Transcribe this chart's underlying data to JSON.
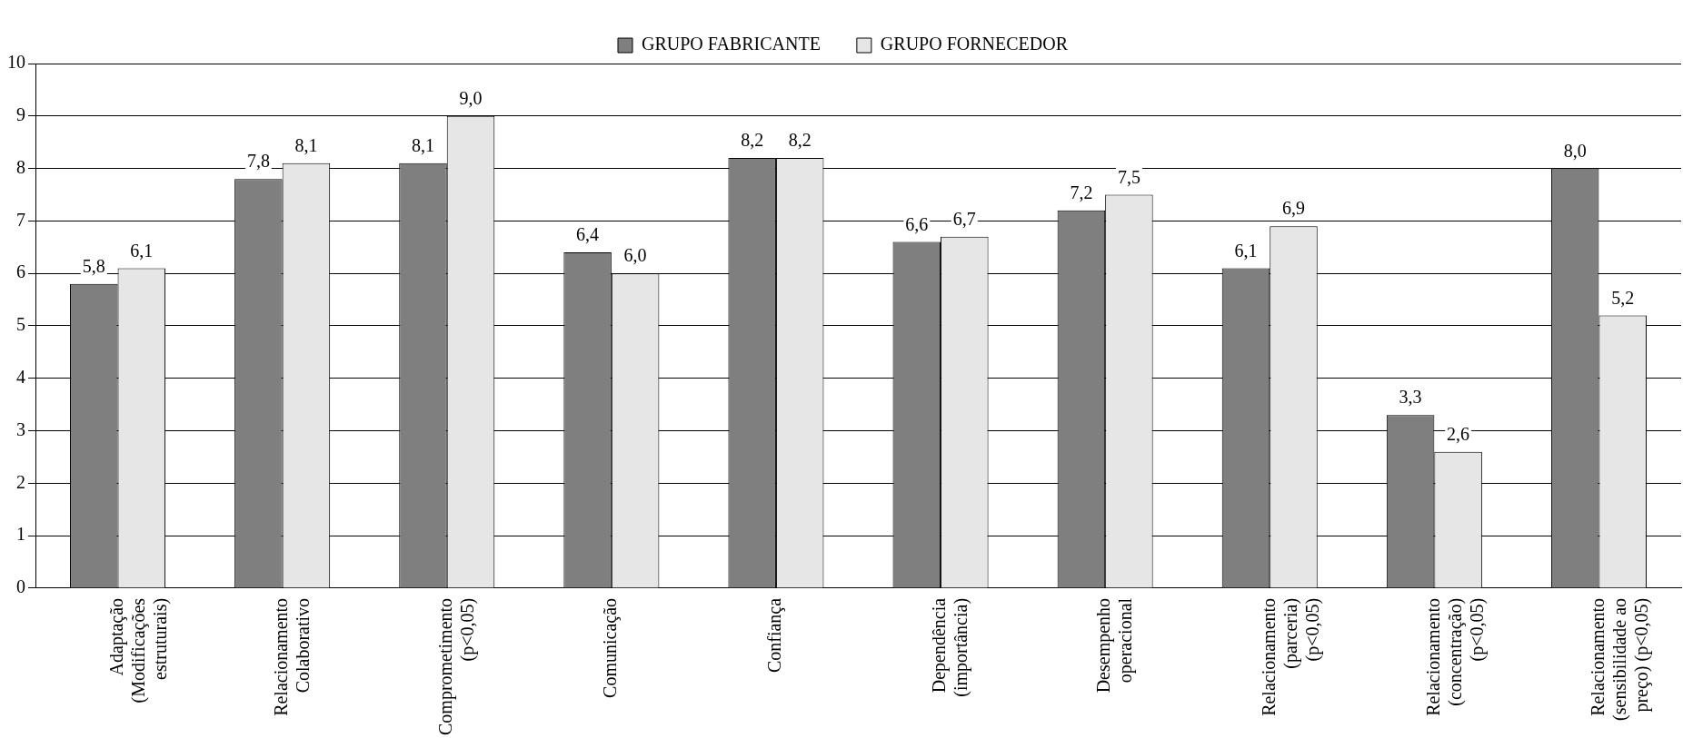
{
  "chart_data": {
    "type": "bar",
    "categories": [
      "Adaptação\n(Modificações\nestruturais)",
      "Relacionamento\nColaborativo",
      "Comprometimento\n(p<0,05)",
      "Comunicação",
      "Confiança",
      "Dependência\n(importância)",
      "Desempenho\noperacional",
      "Relacionamento\n(parceria)\n(p<0,05)",
      "Relacionamento\n(concentração)\n(p<0,05)",
      "Relacionamento\n(sensibilidade ao\npreço) (p<0,05)"
    ],
    "series": [
      {
        "name": "GRUPO FABRICANTE",
        "color": "#7f7f7f",
        "values": [
          5.8,
          7.8,
          8.1,
          6.4,
          8.2,
          6.6,
          7.2,
          6.1,
          3.3,
          8.0
        ],
        "value_labels": [
          "5,8",
          "7,8",
          "8,1",
          "6,4",
          "8,2",
          "6,6",
          "7,2",
          "6,1",
          "3,3",
          "8,0"
        ]
      },
      {
        "name": "GRUPO FORNECEDOR",
        "color": "#e6e6e6",
        "values": [
          6.1,
          8.1,
          9.0,
          6.0,
          8.2,
          6.7,
          7.5,
          6.9,
          2.6,
          5.2
        ],
        "value_labels": [
          "6,1",
          "8,1",
          "9,0",
          "6,0",
          "8,2",
          "6,7",
          "7,5",
          "6,9",
          "2,6",
          "5,2"
        ]
      }
    ],
    "ylim": [
      0,
      10
    ],
    "yticks": [
      0,
      1,
      2,
      3,
      4,
      5,
      6,
      7,
      8,
      9,
      10
    ],
    "grid": "y",
    "legend": "top"
  }
}
